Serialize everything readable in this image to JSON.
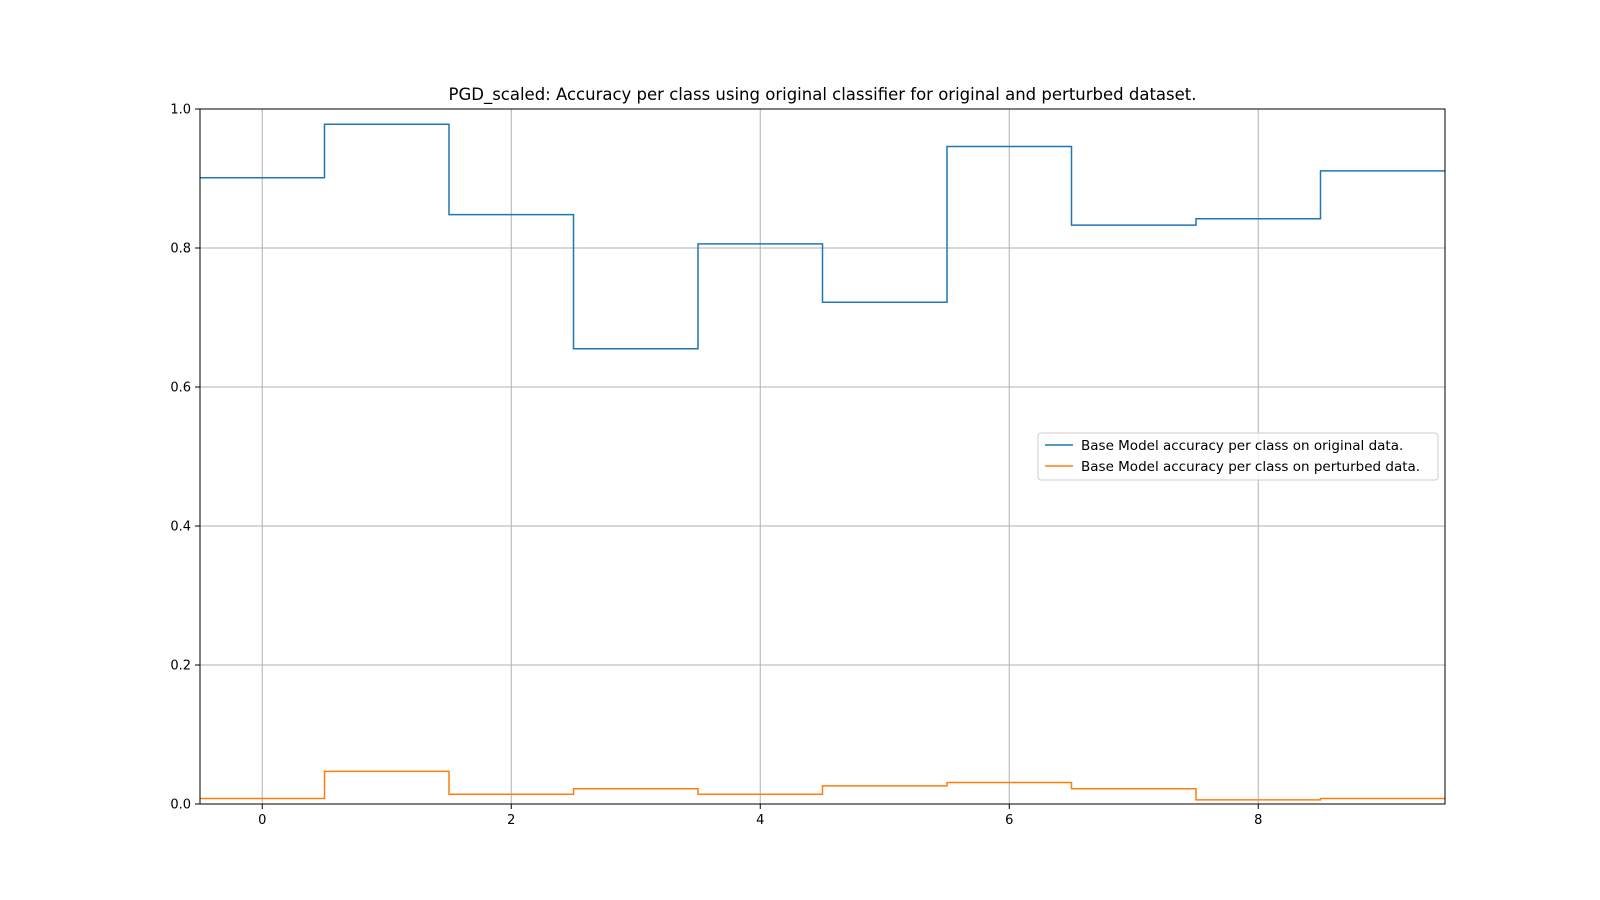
{
  "chart_data": {
    "type": "line",
    "drawstyle": "steps-mid",
    "title": "PGD_scaled: Accuracy per class using original classifier for original and perturbed dataset.",
    "xlabel": "",
    "ylabel": "",
    "xlim": [
      -0.5,
      9.5
    ],
    "ylim": [
      0.0,
      1.0
    ],
    "xticks": [
      0,
      2,
      4,
      6,
      8
    ],
    "yticks": [
      0.0,
      0.2,
      0.4,
      0.6,
      0.8,
      1.0
    ],
    "xtick_labels": [
      "0",
      "2",
      "4",
      "6",
      "8"
    ],
    "ytick_labels": [
      "0.0",
      "0.2",
      "0.4",
      "0.6",
      "0.8",
      "1.0"
    ],
    "grid": true,
    "legend_position": "center-right",
    "x": [
      0,
      1,
      2,
      3,
      4,
      5,
      6,
      7,
      8,
      9
    ],
    "series": [
      {
        "name": "Base Model accuracy per class on original data.",
        "color": "#1f77b4",
        "values": [
          0.901,
          0.978,
          0.848,
          0.655,
          0.806,
          0.722,
          0.946,
          0.833,
          0.842,
          0.911
        ]
      },
      {
        "name": "Base Model accuracy per class on perturbed data.",
        "color": "#ff7f0e",
        "values": [
          0.008,
          0.047,
          0.014,
          0.022,
          0.014,
          0.026,
          0.031,
          0.022,
          0.006,
          0.008
        ]
      }
    ]
  }
}
